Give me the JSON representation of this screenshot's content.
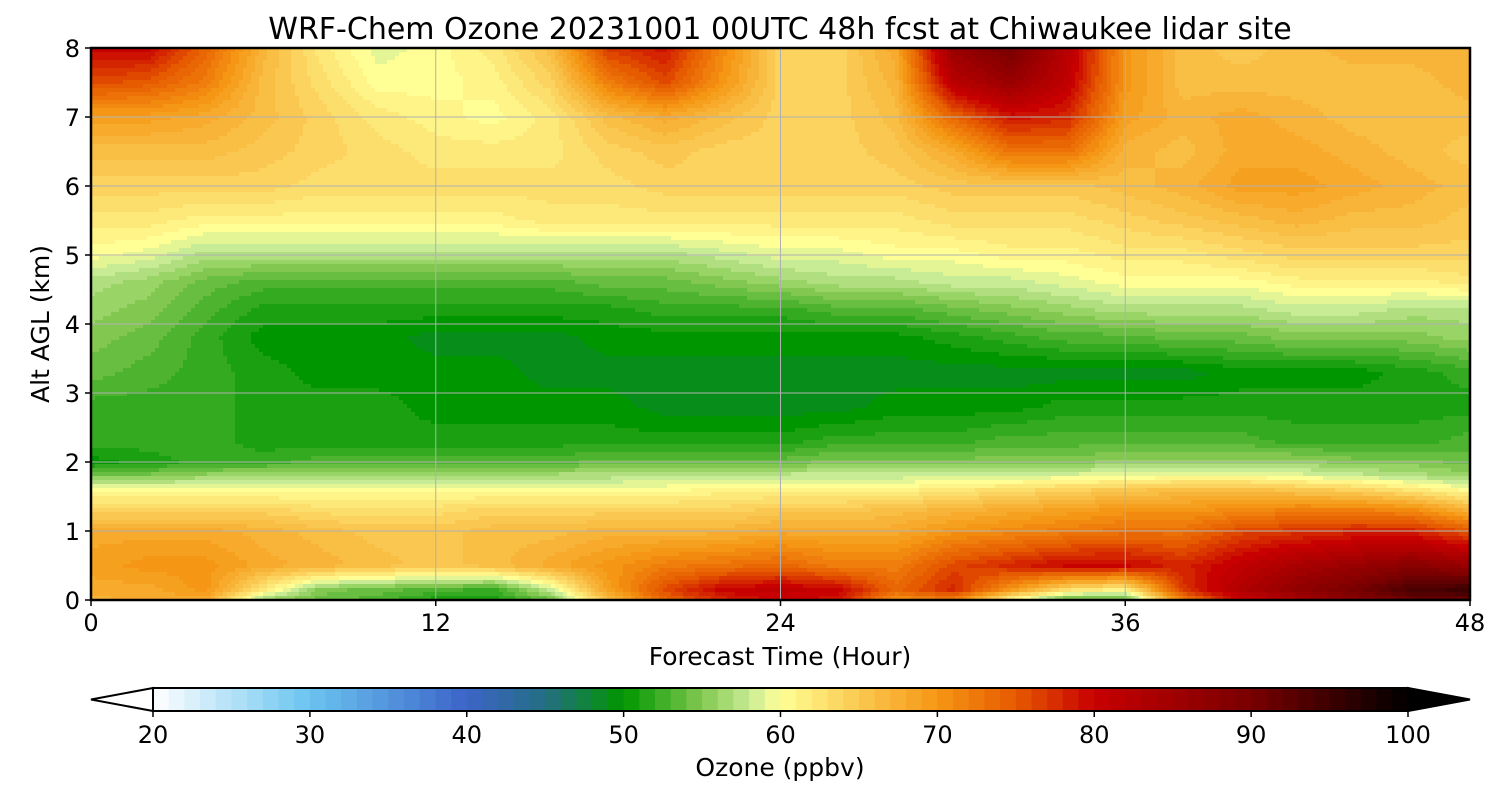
{
  "chart_data": {
    "type": "heatmap",
    "title": "WRF-Chem Ozone  20231001 00UTC 48h fcst at Chiwaukee lidar site",
    "xlabel": "Forecast Time (Hour)",
    "ylabel": "Alt AGL (km)",
    "xlim": [
      0,
      48
    ],
    "ylim": [
      0,
      8
    ],
    "x_ticks": [
      0,
      12,
      24,
      36,
      48
    ],
    "x_tick_labels": [
      "0",
      "12",
      "24",
      "36",
      "48"
    ],
    "y_ticks": [
      0,
      1,
      2,
      3,
      4,
      5,
      6,
      7,
      8
    ],
    "y_tick_labels": [
      "0",
      "1",
      "2",
      "3",
      "4",
      "5",
      "6",
      "7",
      "8"
    ],
    "grid": true,
    "colorbar": {
      "label": "Ozone  (ppbv)",
      "range": [
        20,
        100
      ],
      "ticks": [
        20,
        30,
        40,
        50,
        60,
        70,
        80,
        90,
        100
      ],
      "tick_labels": [
        "20",
        "30",
        "40",
        "50",
        "60",
        "70",
        "80",
        "90",
        "100"
      ],
      "extend": "both",
      "color_stops": [
        {
          "value": 20,
          "color": "#ffffff"
        },
        {
          "value": 30,
          "color": "#6ac4f0"
        },
        {
          "value": 40,
          "color": "#3c64c8"
        },
        {
          "value": 45,
          "color": "#236e82"
        },
        {
          "value": 50,
          "color": "#009600"
        },
        {
          "value": 55,
          "color": "#82c850"
        },
        {
          "value": 58,
          "color": "#c8eb96"
        },
        {
          "value": 60,
          "color": "#ffff96"
        },
        {
          "value": 65,
          "color": "#fac850"
        },
        {
          "value": 70,
          "color": "#f59614"
        },
        {
          "value": 75,
          "color": "#e65a00"
        },
        {
          "value": 80,
          "color": "#c80000"
        },
        {
          "value": 90,
          "color": "#780000"
        },
        {
          "value": 100,
          "color": "#000000"
        }
      ]
    },
    "x_hours": [
      0,
      2,
      4,
      6,
      8,
      10,
      12,
      14,
      16,
      18,
      20,
      22,
      24,
      26,
      28,
      30,
      32,
      34,
      36,
      38,
      40,
      42,
      44,
      46,
      48
    ],
    "altitudes_km": [
      0,
      0.15,
      0.5,
      1.0,
      1.3,
      1.6,
      1.8,
      2.0,
      2.3,
      2.8,
      3.3,
      3.8,
      4.2,
      4.6,
      5.0,
      5.5,
      6.0,
      6.5,
      7.0,
      7.5,
      8.0
    ],
    "ozone_ppbv": [
      [
        67,
        68,
        68,
        56,
        54,
        53,
        51,
        51,
        54,
        66,
        74,
        78,
        80,
        79,
        70,
        72,
        60,
        53,
        53,
        72,
        80,
        84,
        88,
        91,
        92
      ],
      [
        68,
        68,
        70,
        62,
        55,
        54,
        53,
        52,
        58,
        69,
        76,
        80,
        81,
        80,
        74,
        78,
        70,
        63,
        61,
        77,
        83,
        87,
        90,
        94,
        95
      ],
      [
        69,
        70,
        70,
        68,
        67,
        66,
        65,
        66,
        68,
        70,
        72,
        73,
        74,
        72,
        72,
        76,
        78,
        80,
        80,
        78,
        81,
        84,
        86,
        88,
        86
      ],
      [
        68,
        68,
        68,
        67,
        66,
        65,
        65,
        66,
        66,
        67,
        67,
        67,
        68,
        68,
        68,
        70,
        71,
        72,
        73,
        73,
        76,
        77,
        78,
        78,
        75
      ],
      [
        64,
        64,
        64,
        64,
        63,
        63,
        63,
        64,
        64,
        64,
        64,
        64,
        65,
        65,
        66,
        67,
        68,
        69,
        70,
        70,
        71,
        72,
        72,
        71,
        67
      ],
      [
        60,
        60,
        60,
        60,
        60,
        60,
        60,
        60,
        60,
        60,
        60,
        61,
        61,
        61,
        61,
        62,
        63,
        64,
        65,
        66,
        66,
        65,
        64,
        62,
        60
      ],
      [
        55,
        55,
        56,
        57,
        57,
        57,
        57,
        57,
        57,
        57,
        58,
        58,
        58,
        58,
        58,
        58,
        58,
        59,
        59,
        60,
        60,
        59,
        58,
        57,
        56
      ],
      [
        50,
        51,
        52,
        52,
        53,
        53,
        53,
        53,
        53,
        54,
        54,
        54,
        54,
        55,
        55,
        55,
        55,
        55,
        56,
        56,
        56,
        56,
        55,
        55,
        54
      ],
      [
        52,
        52,
        52,
        51,
        51,
        51,
        51,
        51,
        51,
        51,
        51,
        51,
        51,
        52,
        52,
        52,
        53,
        53,
        53,
        53,
        53,
        52,
        52,
        52,
        53
      ],
      [
        52,
        52,
        52,
        51,
        51,
        51,
        50,
        50,
        50,
        50,
        49,
        49,
        49,
        49,
        50,
        50,
        50,
        51,
        51,
        51,
        51,
        51,
        51,
        51,
        51
      ],
      [
        54,
        53,
        52,
        51,
        50,
        50,
        50,
        50,
        49,
        49,
        49,
        49,
        49,
        49,
        49,
        49,
        49,
        49,
        49,
        49,
        50,
        50,
        50,
        51,
        52
      ],
      [
        55,
        54,
        52,
        50,
        50,
        50,
        49,
        49,
        49,
        50,
        50,
        50,
        50,
        50,
        50,
        51,
        52,
        53,
        53,
        54,
        54,
        55,
        55,
        55,
        56
      ],
      [
        56,
        55,
        53,
        51,
        51,
        51,
        51,
        51,
        51,
        51,
        52,
        52,
        52,
        53,
        53,
        54,
        55,
        56,
        57,
        57,
        57,
        58,
        58,
        57,
        57
      ],
      [
        57,
        56,
        54,
        53,
        53,
        53,
        53,
        53,
        53,
        54,
        54,
        55,
        56,
        57,
        57,
        58,
        58,
        59,
        60,
        60,
        60,
        61,
        61,
        61,
        62
      ],
      [
        60,
        59,
        57,
        57,
        57,
        57,
        57,
        57,
        57,
        57,
        57,
        58,
        59,
        59,
        60,
        60,
        61,
        61,
        62,
        62,
        63,
        64,
        64,
        64,
        64
      ],
      [
        62,
        62,
        61,
        61,
        61,
        61,
        61,
        61,
        62,
        62,
        62,
        62,
        62,
        62,
        62,
        63,
        63,
        63,
        64,
        65,
        66,
        67,
        66,
        66,
        65
      ],
      [
        64,
        64,
        64,
        64,
        63,
        63,
        63,
        63,
        63,
        63,
        64,
        64,
        64,
        64,
        64,
        65,
        65,
        65,
        66,
        67,
        69,
        69,
        68,
        67,
        66
      ],
      [
        66,
        66,
        66,
        65,
        64,
        63,
        62,
        62,
        62,
        64,
        65,
        64,
        64,
        64,
        65,
        68,
        73,
        73,
        67,
        66,
        68,
        68,
        67,
        66,
        65
      ],
      [
        69,
        69,
        68,
        66,
        64,
        62,
        61,
        60,
        62,
        66,
        68,
        66,
        64,
        64,
        66,
        74,
        79,
        78,
        69,
        67,
        68,
        67,
        66,
        66,
        66
      ],
      [
        76,
        75,
        72,
        66,
        63,
        60,
        60,
        61,
        64,
        72,
        76,
        70,
        64,
        64,
        67,
        82,
        86,
        81,
        70,
        66,
        66,
        66,
        66,
        66,
        67
      ],
      [
        80,
        80,
        74,
        67,
        62,
        59,
        60,
        62,
        66,
        77,
        79,
        71,
        64,
        64,
        68,
        86,
        90,
        82,
        70,
        66,
        65,
        66,
        67,
        67,
        67
      ]
    ]
  }
}
